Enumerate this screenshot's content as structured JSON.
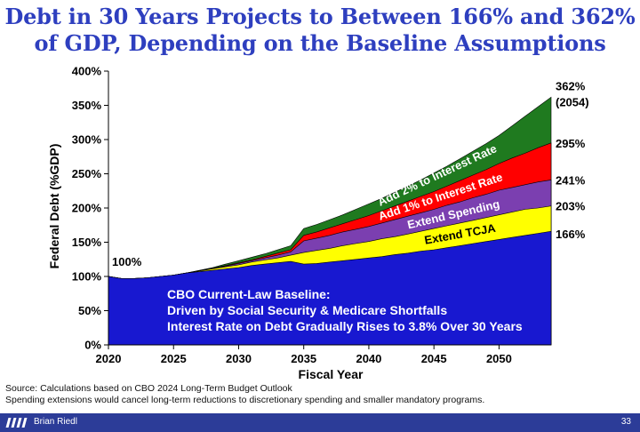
{
  "title": {
    "line1": "Debt in 30 Years Projects to Between 166% and 362%",
    "line2": "of GDP, Depending on the Baseline Assumptions"
  },
  "chart_data": {
    "type": "area",
    "stacked": true,
    "xlabel": "Fiscal Year",
    "ylabel": "Federal Debt (%GDP)",
    "xlim": [
      2020,
      2054
    ],
    "ylim": [
      0,
      400
    ],
    "xticks": [
      "2020",
      "2025",
      "2030",
      "2035",
      "2040",
      "2045",
      "2050"
    ],
    "yticks": [
      "0%",
      "50%",
      "100%",
      "150%",
      "200%",
      "250%",
      "300%",
      "350%",
      "400%"
    ],
    "x": [
      2020,
      2021,
      2022,
      2023,
      2024,
      2025,
      2026,
      2027,
      2028,
      2029,
      2030,
      2031,
      2032,
      2033,
      2034,
      2035,
      2036,
      2037,
      2038,
      2039,
      2040,
      2041,
      2042,
      2043,
      2044,
      2045,
      2046,
      2047,
      2048,
      2049,
      2050,
      2051,
      2052,
      2053,
      2054
    ],
    "series": [
      {
        "name": "CBO Current-Law Baseline",
        "color": "#1818d0",
        "values": [
          100,
          97,
          97,
          98,
          100,
          102,
          105,
          107,
          109,
          111,
          113,
          116,
          118,
          120,
          122,
          118,
          119,
          121,
          123,
          125,
          127,
          129,
          132,
          134,
          137,
          139,
          142,
          145,
          148,
          151,
          154,
          157,
          160,
          163,
          166
        ]
      },
      {
        "name": "Extend TCJA",
        "color": "#ffff00",
        "values": [
          100,
          97,
          97,
          98,
          100,
          102,
          105,
          108,
          111,
          114,
          117,
          121,
          124,
          127,
          131,
          135,
          138,
          141,
          145,
          148,
          151,
          155,
          158,
          162,
          166,
          170,
          174,
          178,
          182,
          186,
          190,
          194,
          198,
          200,
          203
        ]
      },
      {
        "name": "Extend Spending",
        "color": "#7b3fb0",
        "values": [
          100,
          97,
          97,
          98,
          100,
          102,
          105,
          108,
          112,
          115,
          119,
          123,
          127,
          131,
          136,
          152,
          156,
          160,
          165,
          169,
          173,
          178,
          183,
          188,
          193,
          198,
          204,
          209,
          215,
          220,
          226,
          230,
          234,
          238,
          241
        ]
      },
      {
        "name": "Add 1% to Interest Rate",
        "color": "#ff0000",
        "values": [
          100,
          97,
          97,
          98,
          100,
          102,
          105,
          108,
          112,
          116,
          120,
          124,
          129,
          134,
          139,
          160,
          165,
          171,
          177,
          183,
          189,
          196,
          203,
          210,
          217,
          224,
          232,
          240,
          248,
          256,
          265,
          273,
          280,
          288,
          295
        ]
      },
      {
        "name": "Add 2% to Interest Rate",
        "color": "#1f7a1f",
        "values": [
          100,
          97,
          97,
          98,
          100,
          102,
          105,
          109,
          113,
          118,
          123,
          128,
          133,
          139,
          145,
          170,
          176,
          183,
          190,
          198,
          206,
          214,
          223,
          232,
          241,
          251,
          261,
          272,
          283,
          294,
          306,
          320,
          334,
          348,
          362
        ]
      }
    ],
    "band_labels": [
      "Extend TCJA",
      "Extend Spending",
      "Add 1% to Interest Rate",
      "Add 2% to Interest Rate"
    ],
    "annotations": {
      "start": "100%",
      "end_362": "362%",
      "end_362_year": "(2054)",
      "end_295": "295%",
      "end_241": "241%",
      "end_203": "203%",
      "end_166": "166%"
    },
    "baseline_note": [
      "CBO Current-Law Baseline:",
      "Driven by Social Security & Medicare Shortfalls",
      "Interest Rate on Debt Gradually Rises to 3.8% Over 30 Years"
    ]
  },
  "source": {
    "line1": "Source: Calculations based on CBO 2024 Long-Term Budget Outlook",
    "line2": "Spending extensions would cancel long-term reductions to discretionary spending and smaller mandatory programs."
  },
  "footer": {
    "author": "Brian Riedl",
    "page": "33",
    "bar_color": "#2c3c98"
  },
  "colors": {
    "title": "#2e3fbf"
  }
}
